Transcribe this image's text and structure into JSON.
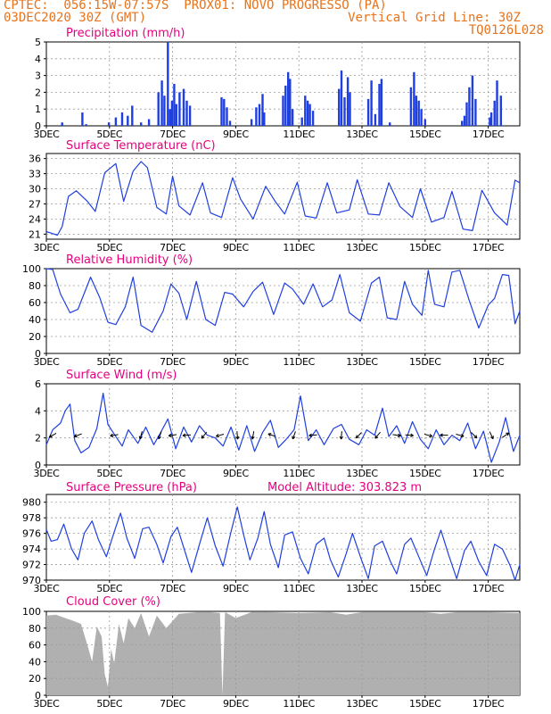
{
  "header": {
    "line1": "CPTEC:  056:15W-07:57S  PROX01: NOVO PROGRESSO (PA)",
    "line2": "03DEC2020 30Z (GMT)",
    "grid_note": "Vertical Grid Line: 30Z",
    "code": "TQ0126L028"
  },
  "colors": {
    "header": "#e8731b",
    "title": "#e6007e",
    "line": "#1f3fe0",
    "cloud": "#b0b0b0",
    "grid": "#9a9a9a"
  },
  "x_ticks": [
    "3DEC",
    "5DEC",
    "7DEC",
    "9DEC",
    "11DEC",
    "13DEC",
    "15DEC",
    "17DEC"
  ],
  "x_tick_positions_days": [
    0,
    2,
    4,
    6,
    8,
    10,
    12,
    14
  ],
  "extra_label": "Model Altitude: 303.823 m",
  "chart_data": [
    {
      "id": "precip",
      "type": "bar",
      "title": "Precipitation (mm/h)",
      "ylim": [
        0,
        5
      ],
      "yticks": [
        0,
        1,
        2,
        3,
        4,
        5
      ],
      "xlim_days": [
        0,
        15
      ],
      "x": [
        0.5,
        1.14,
        1.26,
        1.98,
        2.2,
        2.4,
        2.58,
        2.72,
        3.0,
        3.25,
        3.55,
        3.66,
        3.74,
        3.85,
        3.92,
        3.98,
        4.05,
        4.12,
        4.22,
        4.35,
        4.45,
        4.55,
        5.55,
        5.63,
        5.72,
        5.82,
        6.5,
        6.65,
        6.75,
        6.85,
        6.9,
        7.5,
        7.58,
        7.66,
        7.72,
        7.8,
        8.1,
        8.2,
        8.28,
        8.35,
        8.45,
        9.27,
        9.35,
        9.45,
        9.55,
        9.62,
        10.2,
        10.3,
        10.42,
        10.55,
        10.62,
        10.88,
        11.55,
        11.65,
        11.72,
        11.8,
        11.88,
        12.0,
        13.17,
        13.25,
        13.32,
        13.4,
        13.5,
        13.6,
        14.05,
        14.1,
        14.2,
        14.28,
        14.4
      ],
      "values": [
        0.2,
        0.8,
        0.1,
        0.2,
        0.5,
        0.8,
        0.6,
        1.2,
        0.2,
        0.4,
        2.0,
        2.7,
        1.8,
        5.0,
        1.0,
        1.5,
        2.5,
        1.3,
        2.0,
        2.2,
        1.5,
        1.2,
        1.7,
        1.6,
        1.1,
        0.3,
        0.4,
        1.1,
        1.3,
        1.9,
        0.8,
        1.8,
        2.4,
        3.2,
        2.8,
        1.0,
        0.5,
        1.8,
        1.5,
        1.3,
        0.9,
        2.2,
        3.3,
        1.7,
        2.9,
        2.0,
        1.6,
        2.7,
        0.7,
        2.5,
        2.8,
        0.2,
        2.3,
        3.2,
        1.8,
        1.5,
        1.0,
        0.4,
        0.3,
        0.6,
        1.4,
        2.3,
        3.0,
        1.6,
        0.5,
        0.8,
        1.5,
        2.7,
        1.8
      ]
    },
    {
      "id": "temp",
      "type": "line",
      "title": "Surface Temperature (nC)",
      "ylim": [
        20,
        37
      ],
      "yticks": [
        21,
        24,
        27,
        30,
        33,
        36
      ],
      "xlim_days": [
        0,
        15
      ],
      "x": [
        0,
        0.15,
        0.35,
        0.5,
        0.7,
        0.95,
        1.3,
        1.55,
        1.85,
        2.2,
        2.45,
        2.75,
        3.0,
        3.2,
        3.5,
        3.8,
        4.0,
        4.2,
        4.55,
        4.95,
        5.2,
        5.55,
        5.9,
        6.15,
        6.55,
        6.95,
        7.25,
        7.55,
        7.95,
        8.2,
        8.55,
        8.9,
        9.2,
        9.6,
        9.85,
        10.2,
        10.55,
        10.85,
        11.2,
        11.6,
        11.85,
        12.2,
        12.6,
        12.85,
        13.2,
        13.5,
        13.8,
        14.2,
        14.6,
        14.85,
        15.0
      ],
      "values": [
        21.5,
        21.2,
        20.8,
        22.5,
        28.5,
        29.6,
        27.5,
        25.5,
        33.2,
        35.0,
        27.5,
        33.5,
        35.4,
        34.2,
        26.3,
        25.0,
        32.5,
        26.6,
        24.8,
        31.2,
        25.2,
        24.3,
        32.2,
        28.0,
        24.0,
        30.5,
        27.5,
        25.0,
        31.3,
        24.6,
        24.2,
        31.2,
        25.2,
        25.8,
        31.8,
        25.0,
        24.8,
        31.2,
        26.5,
        24.3,
        30.0,
        23.4,
        24.3,
        29.5,
        22.0,
        21.7,
        29.7,
        25.2,
        22.8,
        31.7,
        31.2
      ]
    },
    {
      "id": "rh",
      "type": "line",
      "title": "Relative Humidity (%)",
      "ylim": [
        0,
        100
      ],
      "yticks": [
        0,
        20,
        40,
        60,
        80,
        100
      ],
      "xlim_days": [
        0,
        15
      ],
      "x": [
        0,
        0.2,
        0.45,
        0.75,
        1.0,
        1.4,
        1.7,
        1.95,
        2.2,
        2.5,
        2.75,
        3.0,
        3.35,
        3.7,
        3.95,
        4.2,
        4.45,
        4.75,
        5.05,
        5.35,
        5.65,
        5.9,
        6.25,
        6.55,
        6.85,
        7.2,
        7.55,
        7.8,
        8.15,
        8.45,
        8.75,
        9.05,
        9.3,
        9.6,
        9.95,
        10.3,
        10.55,
        10.8,
        11.1,
        11.35,
        11.6,
        11.9,
        12.1,
        12.3,
        12.6,
        12.85,
        13.1,
        13.4,
        13.7,
        14.0,
        14.2,
        14.45,
        14.65,
        14.85,
        15.0
      ],
      "values": [
        100,
        99,
        70,
        48,
        52,
        90,
        65,
        37,
        34,
        55,
        90,
        33,
        25,
        50,
        82,
        71,
        40,
        85,
        40,
        33,
        72,
        70,
        55,
        73,
        84,
        46,
        83,
        76,
        58,
        82,
        55,
        63,
        93,
        48,
        38,
        83,
        90,
        42,
        40,
        85,
        58,
        45,
        98,
        58,
        55,
        96,
        98,
        62,
        30,
        57,
        65,
        93,
        92,
        35,
        50
      ]
    },
    {
      "id": "wind",
      "type": "line",
      "title": "Surface Wind (m/s)",
      "ylim": [
        0,
        6
      ],
      "yticks": [
        0,
        2,
        4,
        6
      ],
      "xlim_days": [
        0,
        15
      ],
      "x": [
        0,
        0.2,
        0.45,
        0.6,
        0.75,
        0.9,
        1.1,
        1.35,
        1.6,
        1.8,
        1.95,
        2.2,
        2.4,
        2.6,
        2.9,
        3.15,
        3.4,
        3.6,
        3.85,
        4.1,
        4.35,
        4.6,
        4.85,
        5.1,
        5.35,
        5.6,
        5.85,
        6.1,
        6.35,
        6.6,
        6.85,
        7.1,
        7.35,
        7.6,
        7.85,
        8.05,
        8.3,
        8.55,
        8.8,
        9.1,
        9.35,
        9.6,
        9.9,
        10.15,
        10.4,
        10.65,
        10.85,
        11.1,
        11.35,
        11.6,
        11.85,
        12.1,
        12.35,
        12.6,
        12.85,
        13.1,
        13.35,
        13.6,
        13.85,
        14.1,
        14.35,
        14.55,
        14.8,
        15.0
      ],
      "values": [
        1.5,
        2.6,
        3.1,
        4.0,
        4.5,
        1.8,
        0.9,
        1.3,
        2.7,
        5.3,
        3.0,
        2.1,
        1.4,
        2.6,
        1.6,
        2.8,
        1.5,
        2.3,
        3.4,
        1.2,
        2.8,
        1.7,
        2.9,
        2.2,
        2.0,
        1.4,
        2.8,
        1.1,
        2.9,
        1.0,
        2.4,
        3.3,
        1.3,
        1.9,
        2.6,
        5.1,
        1.8,
        2.6,
        1.5,
        2.7,
        3.0,
        1.9,
        1.5,
        2.6,
        2.2,
        4.2,
        2.1,
        2.9,
        1.6,
        3.2,
        1.9,
        1.2,
        2.6,
        1.5,
        2.2,
        1.8,
        3.1,
        1.2,
        2.5,
        0.2,
        1.7,
        3.5,
        1.0,
        2.2
      ]
    },
    {
      "id": "wind_arrows",
      "type": "vector",
      "title": "Surface Wind direction",
      "x": [
        0.2,
        1.0,
        2.15,
        3.0,
        3.6,
        4.0,
        4.45,
        5.0,
        5.5,
        6.05,
        6.55,
        7.15,
        7.85,
        8.45,
        9.35,
        9.9,
        10.5,
        11.1,
        11.5,
        12.1,
        12.6,
        13.1,
        13.55,
        14.1,
        14.55
      ],
      "dir_deg": [
        -150,
        -160,
        -170,
        -105,
        -110,
        -170,
        -175,
        -130,
        -165,
        -85,
        -100,
        160,
        -110,
        -175,
        -95,
        -135,
        -130,
        -10,
        -5,
        -15,
        -180,
        -15,
        -45,
        -65,
        35
      ]
    },
    {
      "id": "pressure",
      "type": "line",
      "title": "Surface Pressure (hPa)",
      "ylim": [
        970,
        981
      ],
      "yticks": [
        970,
        972,
        974,
        976,
        978,
        980
      ],
      "xlim_days": [
        0,
        15
      ],
      "x": [
        0,
        0.15,
        0.35,
        0.55,
        0.8,
        1.0,
        1.2,
        1.45,
        1.65,
        1.9,
        2.15,
        2.35,
        2.55,
        2.8,
        3.05,
        3.25,
        3.5,
        3.7,
        3.95,
        4.15,
        4.35,
        4.6,
        4.85,
        5.1,
        5.35,
        5.6,
        5.85,
        6.05,
        6.25,
        6.45,
        6.7,
        6.9,
        7.1,
        7.35,
        7.55,
        7.8,
        8.05,
        8.3,
        8.55,
        8.8,
        9.0,
        9.25,
        9.5,
        9.7,
        9.95,
        10.2,
        10.4,
        10.65,
        10.9,
        11.1,
        11.35,
        11.55,
        11.8,
        12.05,
        12.3,
        12.5,
        12.75,
        13.0,
        13.25,
        13.45,
        13.7,
        13.95,
        14.2,
        14.45,
        14.7,
        14.85,
        15.0
      ],
      "values": [
        976.5,
        975.0,
        975.2,
        977.2,
        974.0,
        972.6,
        976.0,
        977.6,
        975.2,
        973.0,
        976.2,
        978.6,
        975.4,
        972.8,
        976.6,
        976.8,
        974.6,
        972.2,
        975.6,
        976.8,
        974.2,
        971.0,
        974.6,
        978.0,
        974.4,
        971.8,
        976.2,
        979.4,
        975.8,
        972.6,
        975.4,
        978.8,
        974.6,
        971.6,
        975.8,
        976.2,
        972.8,
        970.8,
        974.6,
        975.4,
        972.6,
        970.4,
        973.4,
        976.0,
        973.0,
        970.2,
        974.4,
        975.0,
        972.4,
        970.8,
        974.6,
        975.4,
        973.0,
        970.6,
        974.0,
        976.4,
        973.2,
        970.2,
        973.8,
        975.0,
        972.4,
        970.6,
        974.6,
        974.0,
        971.8,
        970.0,
        972.0
      ]
    },
    {
      "id": "cloud",
      "type": "area",
      "title": "Cloud Cover (%)",
      "ylim": [
        0,
        100
      ],
      "yticks": [
        0,
        20,
        40,
        60,
        80,
        100
      ],
      "xlim_days": [
        0,
        15
      ],
      "x": [
        0,
        0.3,
        0.6,
        0.9,
        1.1,
        1.3,
        1.45,
        1.6,
        1.75,
        1.85,
        1.95,
        2.05,
        2.15,
        2.3,
        2.45,
        2.6,
        2.8,
        3.0,
        3.25,
        3.5,
        3.8,
        4.2,
        4.8,
        5.2,
        5.5,
        5.58,
        5.66,
        6.0,
        6.5,
        7.0,
        8.0,
        9.0,
        9.5,
        10.0,
        11.0,
        12.0,
        12.5,
        13.0,
        14.0,
        15.0
      ],
      "values": [
        95,
        96,
        92,
        88,
        85,
        60,
        40,
        82,
        70,
        25,
        10,
        55,
        38,
        85,
        62,
        92,
        80,
        98,
        70,
        95,
        80,
        97,
        99,
        99,
        98,
        0,
        99,
        92,
        99,
        99,
        98,
        99,
        96,
        99,
        99,
        99,
        97,
        99,
        99,
        98
      ]
    }
  ]
}
